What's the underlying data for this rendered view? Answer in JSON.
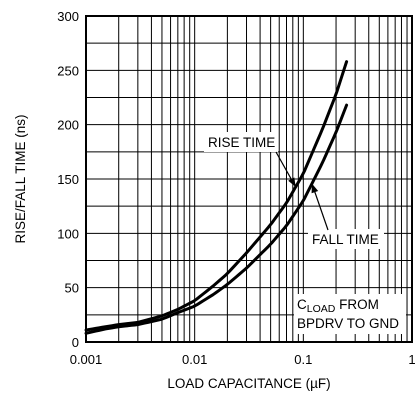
{
  "chart_data": {
    "type": "line",
    "title": "",
    "xlabel": "LOAD CAPACITANCE (µF)",
    "ylabel": "RISE/FALL TIME (ns)",
    "xscale": "log",
    "xlim": [
      0.001,
      1
    ],
    "ylim": [
      0,
      300
    ],
    "x_ticks": [
      {
        "value": 0.001,
        "label": "0.001"
      },
      {
        "value": 0.01,
        "label": "0.01"
      },
      {
        "value": 0.1,
        "label": "0.1"
      },
      {
        "value": 1,
        "label": "1"
      }
    ],
    "y_ticks": [
      {
        "value": 0,
        "label": "0"
      },
      {
        "value": 50,
        "label": "50"
      },
      {
        "value": 100,
        "label": "100"
      },
      {
        "value": 150,
        "label": "150"
      },
      {
        "value": 200,
        "label": "200"
      },
      {
        "value": 250,
        "label": "250"
      },
      {
        "value": 300,
        "label": "300"
      }
    ],
    "grid": true,
    "series": [
      {
        "name": "RISE TIME",
        "x": [
          0.001,
          0.0015,
          0.002,
          0.003,
          0.005,
          0.007,
          0.01,
          0.015,
          0.02,
          0.03,
          0.05,
          0.07,
          0.1,
          0.15,
          0.2,
          0.25
        ],
        "y": [
          11,
          14,
          16,
          18,
          24,
          30,
          38,
          52,
          63,
          82,
          108,
          128,
          155,
          196,
          228,
          258
        ]
      },
      {
        "name": "FALL TIME",
        "x": [
          0.001,
          0.0015,
          0.002,
          0.003,
          0.005,
          0.007,
          0.01,
          0.015,
          0.02,
          0.03,
          0.05,
          0.07,
          0.1,
          0.15,
          0.2,
          0.25
        ],
        "y": [
          8,
          12,
          14,
          16,
          21,
          27,
          33,
          44,
          53,
          68,
          90,
          107,
          130,
          165,
          193,
          218
        ]
      }
    ],
    "annotations": [
      {
        "text": "RISE TIME",
        "target_series": "RISE TIME",
        "at_x": 0.085
      },
      {
        "text": "FALL TIME",
        "target_series": "FALL TIME",
        "at_x": 0.12
      },
      {
        "text_lines": [
          "C",
          "LOAD",
          " FROM",
          "BPDRV TO GND"
        ],
        "position": "bottom-right"
      }
    ]
  }
}
